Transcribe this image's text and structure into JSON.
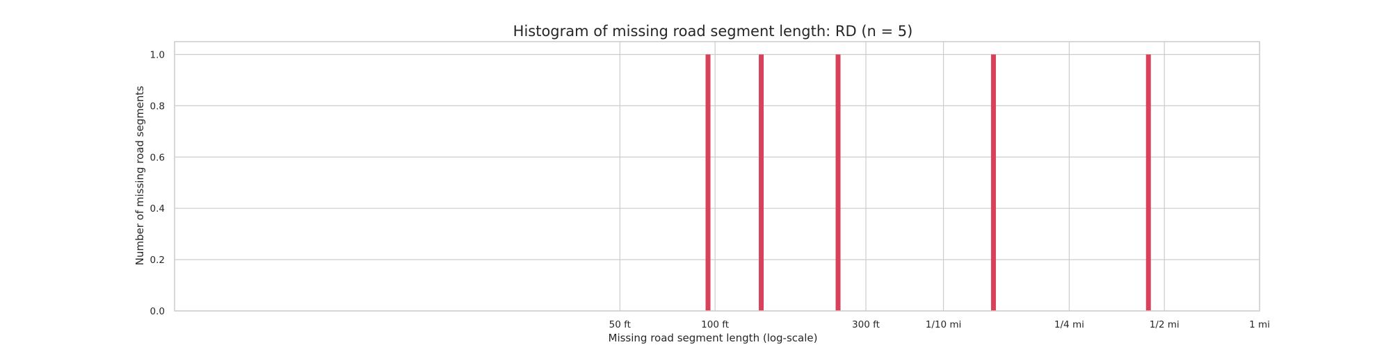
{
  "chart_data": {
    "type": "bar",
    "title": "Histogram of missing road segment length: RD (n = 5)",
    "xlabel": "Missing road segment  length (log-scale)",
    "ylabel": "Number of missing road segments",
    "x_scale": "log",
    "x_unit": "ft",
    "xlim": [
      1.95,
      5280
    ],
    "ylim": [
      0,
      1.05
    ],
    "grid": true,
    "x_ticks": [
      {
        "value": 50,
        "label": "50 ft"
      },
      {
        "value": 100,
        "label": "100 ft"
      },
      {
        "value": 300,
        "label": "300 ft"
      },
      {
        "value": 528,
        "label": "1/10 mi"
      },
      {
        "value": 1320,
        "label": "1/4 mi"
      },
      {
        "value": 2640,
        "label": "1/2 mi"
      },
      {
        "value": 5280,
        "label": "1 mi"
      }
    ],
    "y_ticks": [
      {
        "value": 0.0,
        "label": "0.0"
      },
      {
        "value": 0.2,
        "label": "0.2"
      },
      {
        "value": 0.4,
        "label": "0.4"
      },
      {
        "value": 0.6,
        "label": "0.6"
      },
      {
        "value": 0.8,
        "label": "0.8"
      },
      {
        "value": 1.0,
        "label": "1.0"
      }
    ],
    "bars": [
      {
        "x": 95,
        "count": 1
      },
      {
        "x": 140,
        "count": 1
      },
      {
        "x": 245,
        "count": 1
      },
      {
        "x": 760,
        "count": 1
      },
      {
        "x": 2350,
        "count": 1
      }
    ],
    "bar_color": "#d9415a"
  }
}
